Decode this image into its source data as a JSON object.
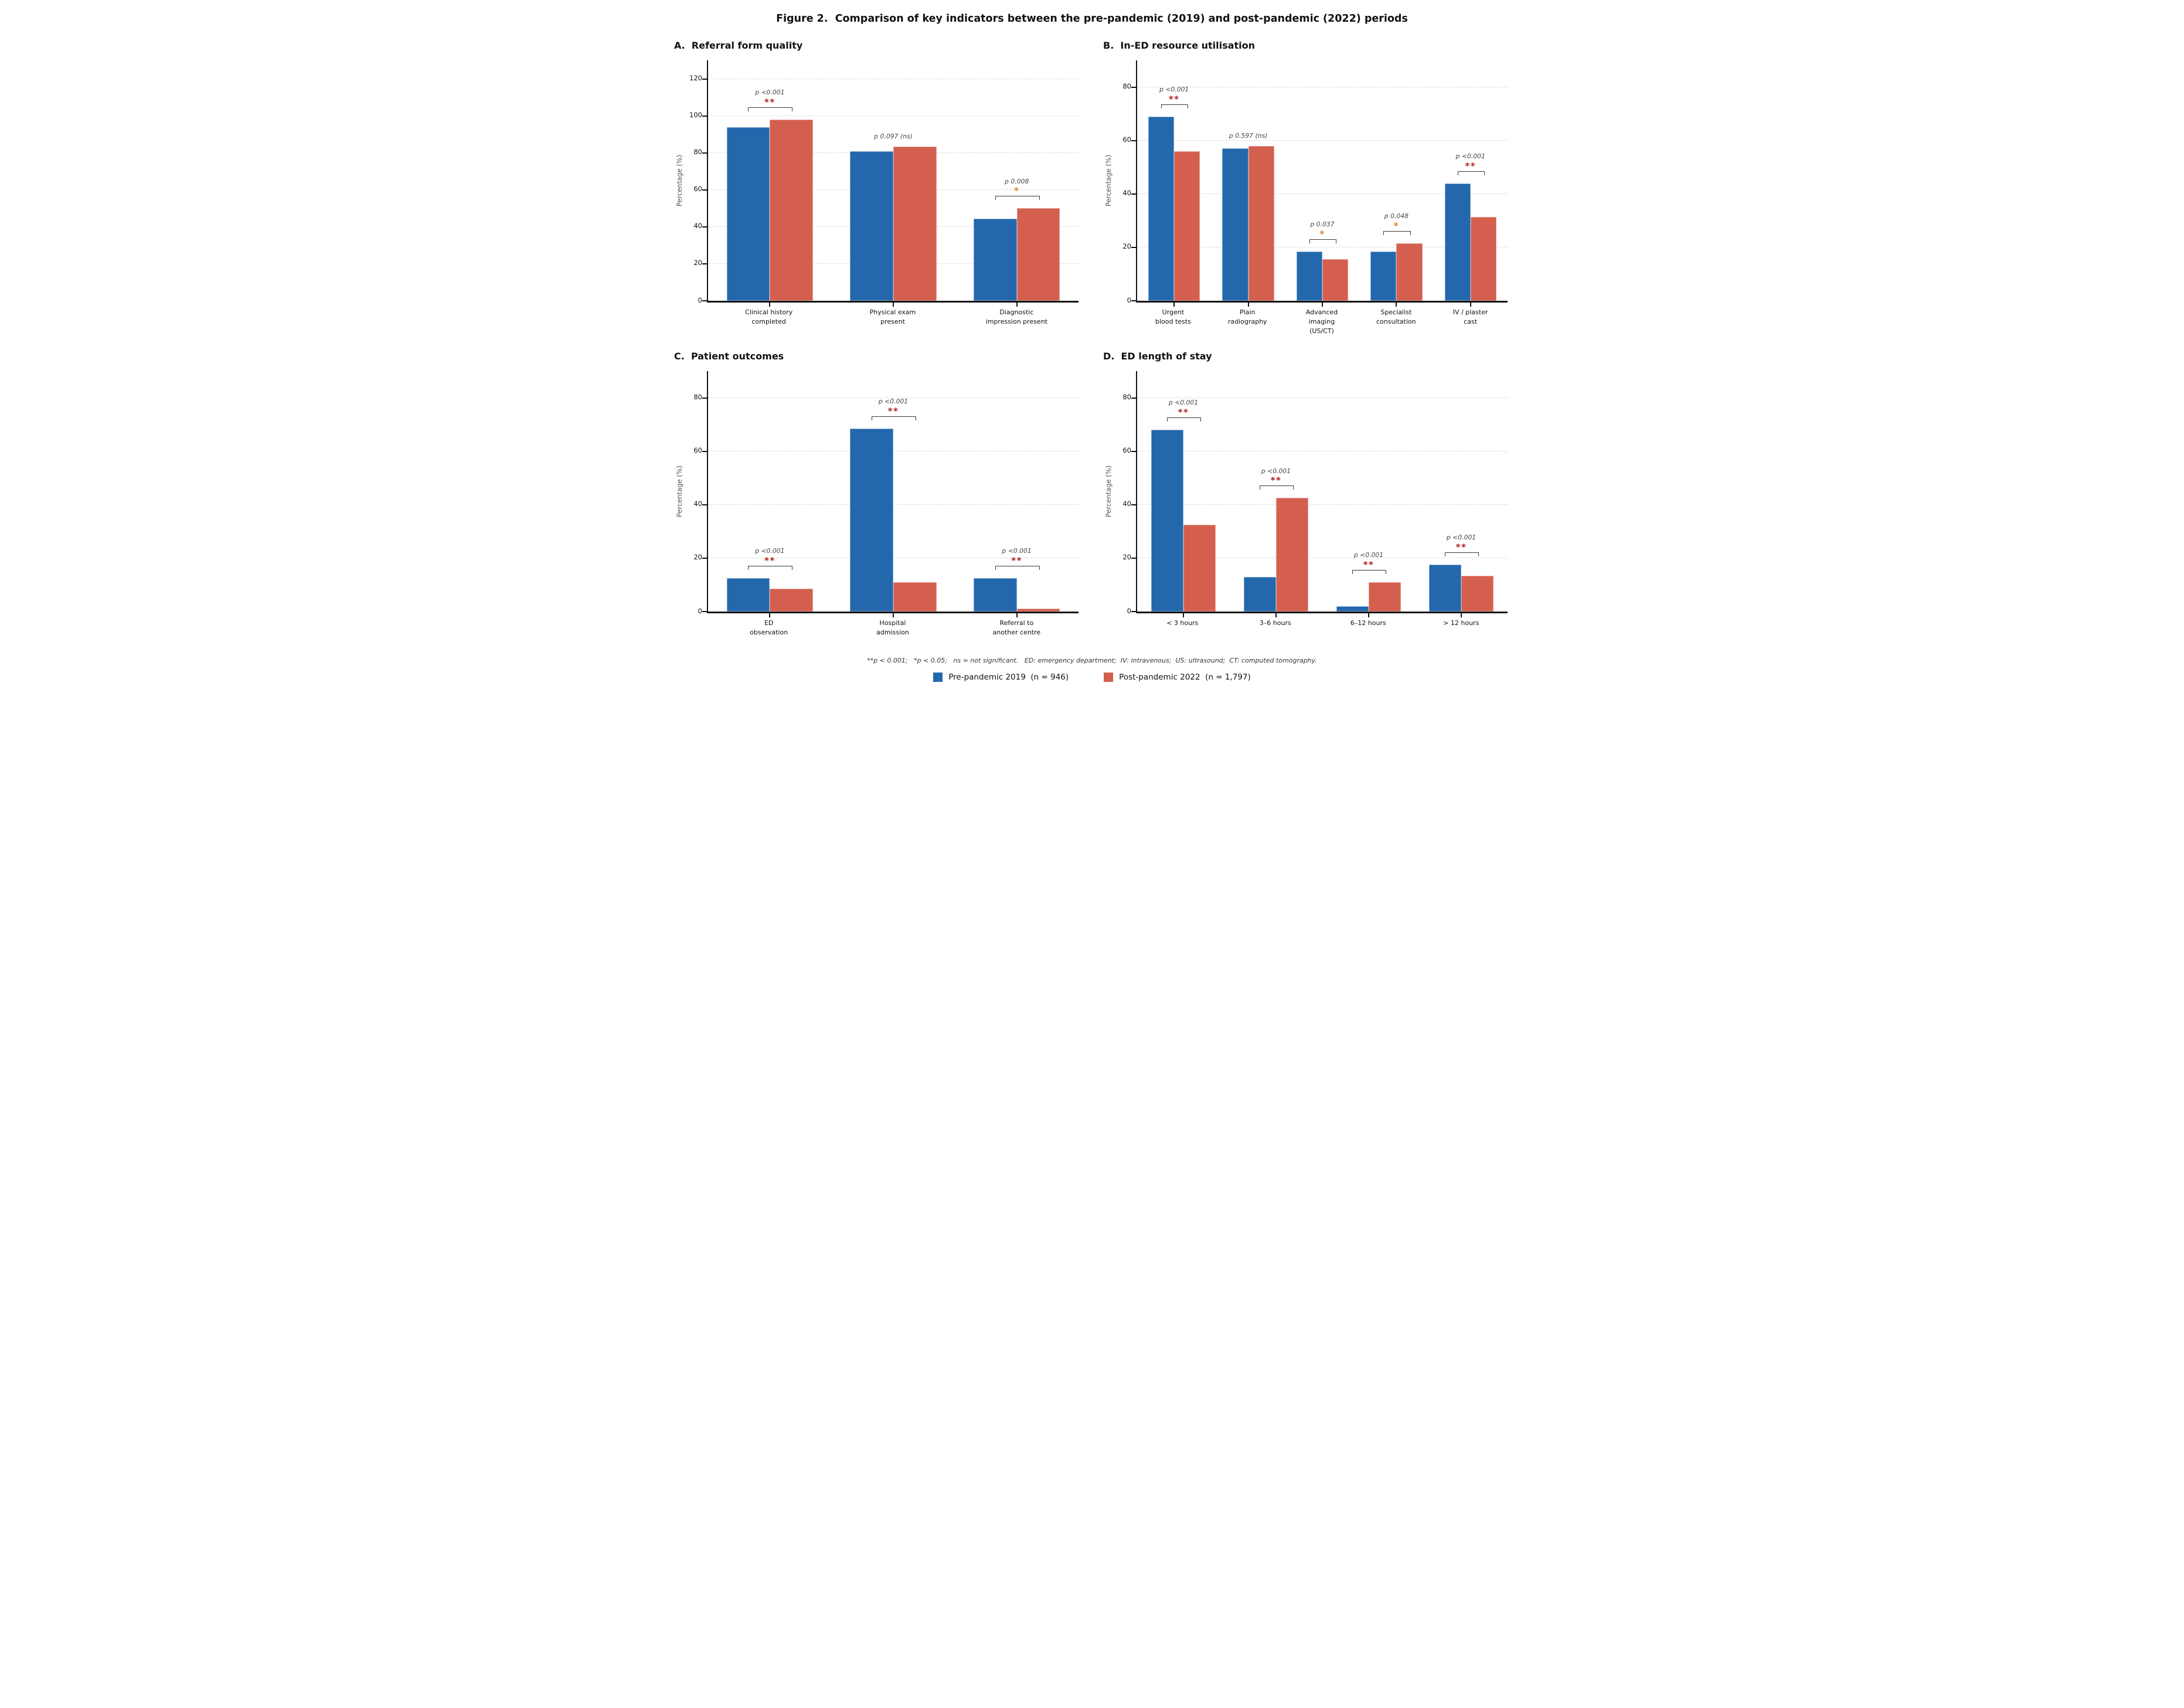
{
  "figure_title": "Figure 2.  Comparison of key indicators between the pre-pandemic (2019) and post-pandemic (2022) periods",
  "footnote": "**p < 0.001;   *p < 0.05;   ns = not significant.   ED: emergency department;  IV: intravenous;  US: ultrasound;  CT: computed tomography.",
  "legend": {
    "items": [
      {
        "name": "pre-pandemic-2019",
        "label": "Pre-pandemic 2019  (n = 946)",
        "color": "#2368ac"
      },
      {
        "name": "post-pandemic-2022",
        "label": "Post-pandemic 2022  (n = 1,797)",
        "color": "#d45f4e"
      }
    ]
  },
  "style": {
    "pre_color": "#2368ac",
    "post_color": "#d45f4e",
    "sig_strong_color": "#b01c1c",
    "sig_weak_color": "#d97b1c",
    "p_text_color": "#444444",
    "axis_color": "#111111",
    "grid_color": "#d8d8d8",
    "bracket_color": "#3a3a3a"
  },
  "chart_data": [
    {
      "id": "A",
      "type": "bar",
      "title": "A.  Referral form quality",
      "xlabel": "",
      "ylabel": "Percentage (%)",
      "ylim": [
        0,
        130
      ],
      "yticks": [
        0,
        20,
        40,
        60,
        80,
        100,
        120
      ],
      "grid": "horizontal dashed",
      "legend_position": "shared bottom",
      "categories": [
        "Clinical history\ncompleted",
        "Physical exam\npresent",
        "Diagnostic\nimpression present"
      ],
      "series": [
        {
          "name": "Pre-pandemic 2019",
          "values": [
            94,
            81,
            44.5
          ]
        },
        {
          "name": "Post-pandemic 2022",
          "values": [
            98,
            83.5,
            50
          ]
        }
      ],
      "annotations": [
        {
          "p": "p <0.001",
          "sig": "**"
        },
        {
          "p": "p 0.097 (ns)",
          "sig": ""
        },
        {
          "p": "p 0.008",
          "sig": "*"
        }
      ]
    },
    {
      "id": "B",
      "type": "bar",
      "title": "B.  In-ED resource utilisation",
      "xlabel": "",
      "ylabel": "Percentage (%)",
      "ylim": [
        0,
        90
      ],
      "yticks": [
        0,
        20,
        40,
        60,
        80
      ],
      "grid": "horizontal dashed",
      "legend_position": "shared bottom",
      "categories": [
        "Urgent\nblood tests",
        "Plain\nradiography",
        "Advanced\nimaging\n(US/CT)",
        "Specialist\nconsultation",
        "IV / plaster\ncast"
      ],
      "series": [
        {
          "name": "Pre-pandemic 2019",
          "values": [
            69,
            57,
            18.5,
            18.5,
            44
          ]
        },
        {
          "name": "Post-pandemic 2022",
          "values": [
            56,
            58,
            15.5,
            21.5,
            31.5
          ]
        }
      ],
      "annotations": [
        {
          "p": "p <0.001",
          "sig": "**"
        },
        {
          "p": "p 0.597 (ns)",
          "sig": ""
        },
        {
          "p": "p 0.037",
          "sig": "*"
        },
        {
          "p": "p 0.048",
          "sig": "*"
        },
        {
          "p": "p <0.001",
          "sig": "**"
        }
      ]
    },
    {
      "id": "C",
      "type": "bar",
      "title": "C.  Patient outcomes",
      "xlabel": "",
      "ylabel": "Percentage (%)",
      "ylim": [
        0,
        90
      ],
      "yticks": [
        0,
        20,
        40,
        60,
        80
      ],
      "grid": "horizontal dashed",
      "legend_position": "shared bottom",
      "categories": [
        "ED\nobservation",
        "Hospital\nadmission",
        "Referral to\nanother centre"
      ],
      "series": [
        {
          "name": "Pre-pandemic 2019",
          "values": [
            12.5,
            68.5,
            12.5
          ]
        },
        {
          "name": "Post-pandemic 2022",
          "values": [
            8.5,
            11,
            1
          ]
        }
      ],
      "annotations": [
        {
          "p": "p <0.001",
          "sig": "**"
        },
        {
          "p": "p <0.001",
          "sig": "**"
        },
        {
          "p": "p <0.001",
          "sig": "**"
        }
      ]
    },
    {
      "id": "D",
      "type": "bar",
      "title": "D.  ED length of stay",
      "xlabel": "",
      "ylabel": "Percentage (%)",
      "ylim": [
        0,
        90
      ],
      "yticks": [
        0,
        20,
        40,
        60,
        80
      ],
      "grid": "horizontal dashed",
      "legend_position": "shared bottom",
      "categories": [
        "< 3 hours",
        "3–6 hours",
        "6–12 hours",
        "> 12 hours"
      ],
      "series": [
        {
          "name": "Pre-pandemic 2019",
          "values": [
            68,
            13,
            2,
            17.5
          ]
        },
        {
          "name": "Post-pandemic 2022",
          "values": [
            32.5,
            42.5,
            11,
            13.5
          ]
        }
      ],
      "annotations": [
        {
          "p": "p <0.001",
          "sig": "**"
        },
        {
          "p": "p <0.001",
          "sig": "**"
        },
        {
          "p": "p <0.001",
          "sig": "**"
        },
        {
          "p": "p <0.001",
          "sig": "**"
        }
      ]
    }
  ]
}
